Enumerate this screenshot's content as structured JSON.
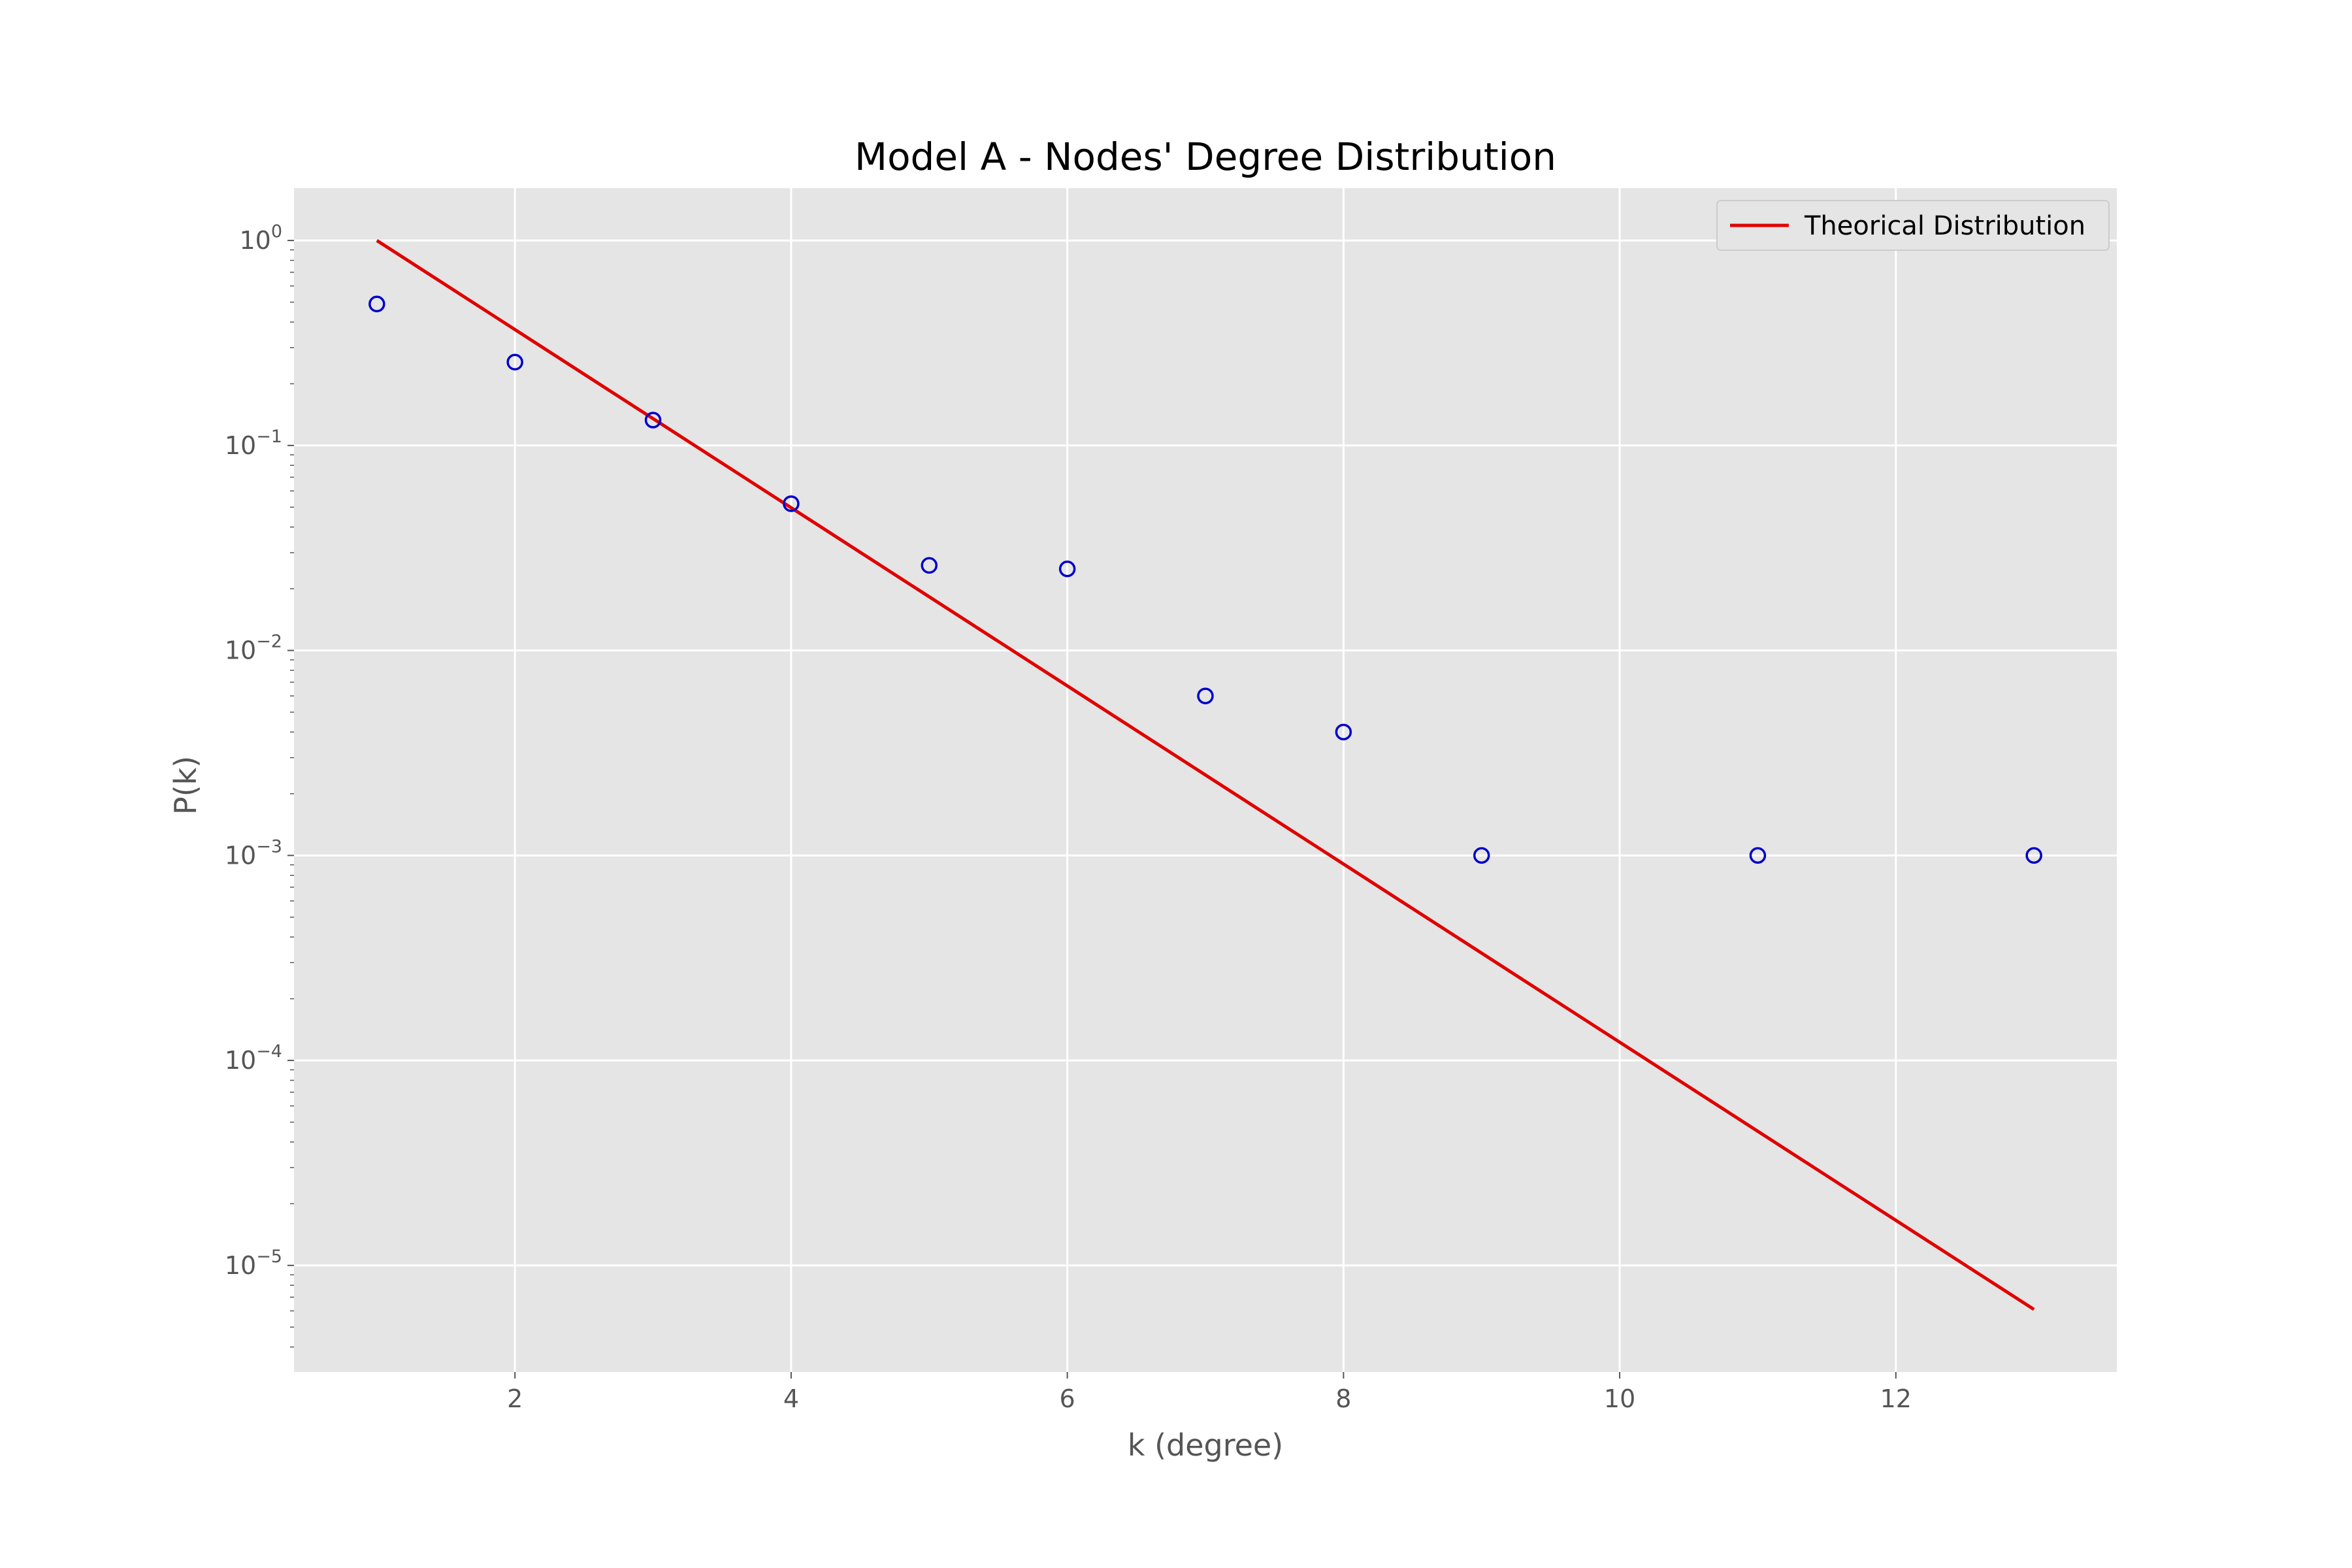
{
  "chart_data": {
    "type": "scatter",
    "title": "Model A - Nodes' Degree Distribution",
    "xlabel": "k (degree)",
    "ylabel": "P(k)",
    "xlim": [
      0.4,
      13.6
    ],
    "ylim": [
      3.02e-06,
      1.8
    ],
    "y_scale": "log",
    "grid": true,
    "legend_position": "top-right",
    "x_ticks": [
      2,
      4,
      6,
      8,
      10,
      12
    ],
    "y_ticks": [
      {
        "value": 1,
        "base": "10",
        "exp": "0"
      },
      {
        "value": 0.1,
        "base": "10",
        "exp": "−1"
      },
      {
        "value": 0.01,
        "base": "10",
        "exp": "−2"
      },
      {
        "value": 0.001,
        "base": "10",
        "exp": "−3"
      },
      {
        "value": 0.0001,
        "base": "10",
        "exp": "−4"
      },
      {
        "value": 1e-05,
        "base": "10",
        "exp": "−5"
      }
    ],
    "series": [
      {
        "name": "",
        "kind": "scatter",
        "marker": "open-circle",
        "color": "#0000cc",
        "x": [
          1,
          2,
          3,
          4,
          5,
          6,
          7,
          8,
          9,
          11,
          13
        ],
        "y": [
          0.49,
          0.255,
          0.133,
          0.052,
          0.026,
          0.025,
          0.006,
          0.004,
          0.001,
          0.001,
          0.001
        ]
      },
      {
        "name": "Theorical Distribution",
        "kind": "line",
        "color": "#e00000",
        "x": [
          1,
          13
        ],
        "y": [
          1.0,
          6.1e-06
        ]
      }
    ]
  },
  "colors": {
    "plot_background": "#e5e5e5",
    "grid": "#ffffff",
    "tick_text": "#555555"
  }
}
